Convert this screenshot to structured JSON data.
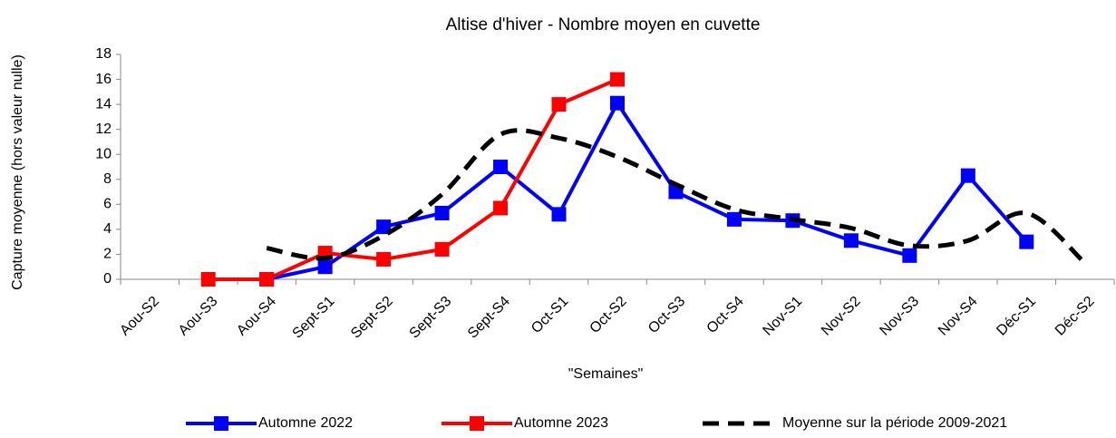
{
  "chart_data": {
    "type": "line",
    "title": "Altise d'hiver - Nombre moyen en cuvette",
    "x_label": "\"Semaines\"",
    "y_label": "Capture moyenne (hors valeur nulle)",
    "categories": [
      "Aou-S2",
      "Aou-S3",
      "Aou-S4",
      "Sept-S1",
      "Sept-S2",
      "Sept-S3",
      "Sept-S4",
      "Oct-S1",
      "Oct-S2",
      "Oct-S3",
      "Oct-S4",
      "Nov-S1",
      "Nov-S2",
      "Nov-S3",
      "Nov-S4",
      "Déc-S1",
      "Déc-S2"
    ],
    "series": [
      {
        "name": "Automne 2022",
        "color": "#0000ff",
        "style": "solid",
        "marker": "square",
        "values": [
          null,
          null,
          0,
          1,
          4.2,
          5.3,
          9,
          5.2,
          14.1,
          7,
          4.8,
          4.7,
          3.1,
          1.9,
          8.3,
          3,
          null
        ]
      },
      {
        "name": "Automne 2023",
        "color": "#ff0000",
        "style": "solid",
        "marker": "square",
        "values": [
          null,
          0,
          0,
          2.1,
          1.6,
          2.4,
          5.7,
          14,
          16,
          null,
          null,
          null,
          null,
          null,
          null,
          null,
          null
        ]
      },
      {
        "name": "Moyenne sur la période 2009-2021",
        "color": "#000000",
        "style": "dashed",
        "smooth": true,
        "values": [
          null,
          null,
          2.5,
          1.7,
          3.5,
          6.8,
          11.6,
          11.3,
          9.8,
          7.6,
          5.6,
          4.8,
          4.1,
          2.7,
          3.1,
          5.3,
          1.3
        ]
      }
    ],
    "ylim": [
      0,
      18
    ],
    "yticks": [
      0,
      2,
      4,
      6,
      8,
      10,
      12,
      14,
      16,
      18
    ],
    "grid": false,
    "legend": "bottom"
  }
}
